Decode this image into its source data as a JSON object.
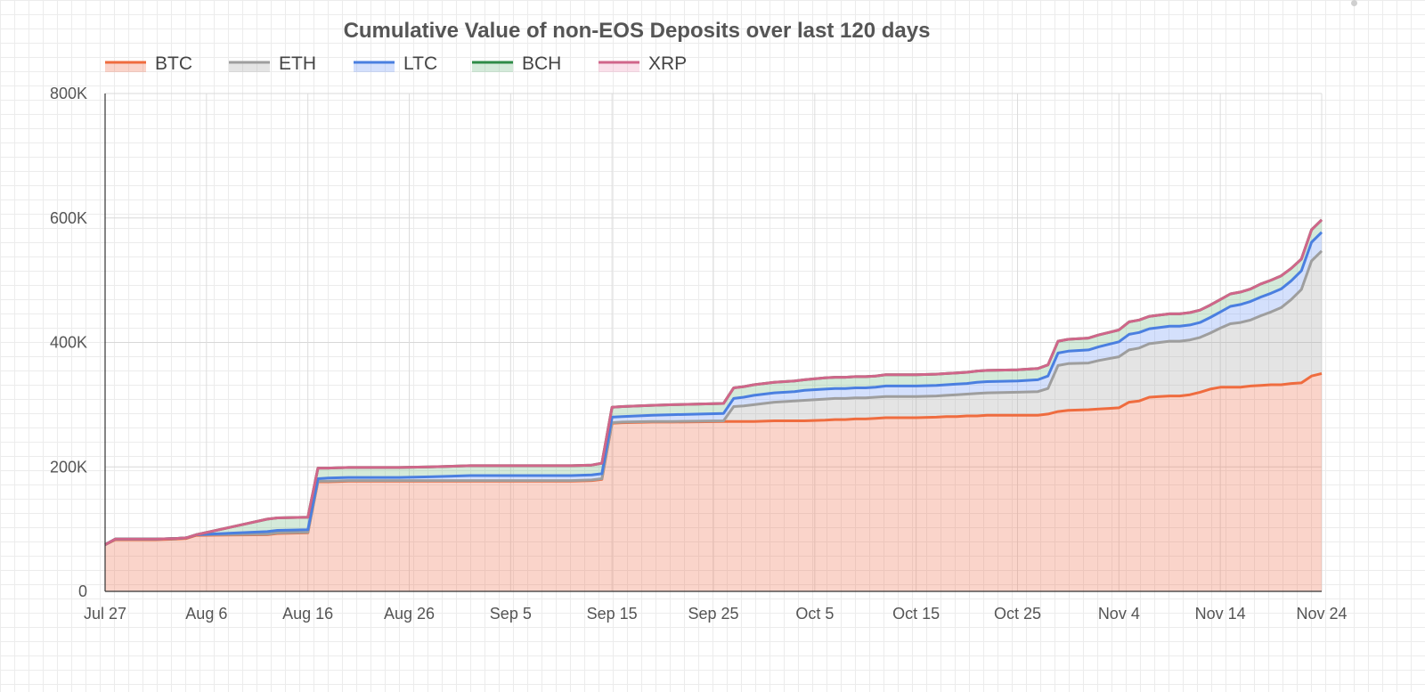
{
  "chart_data": {
    "type": "area",
    "stacked": true,
    "title": "Cumulative Value of non-EOS Deposits over last 120 days",
    "xlabel": "",
    "ylabel": "",
    "ylim": [
      0,
      800000
    ],
    "y_ticks": [
      {
        "value": 0,
        "label": "0"
      },
      {
        "value": 200000,
        "label": "200K"
      },
      {
        "value": 400000,
        "label": "400K"
      },
      {
        "value": 600000,
        "label": "600K"
      },
      {
        "value": 800000,
        "label": "800K"
      }
    ],
    "x_ticks": [
      {
        "day": 0,
        "label": "Jul 27"
      },
      {
        "day": 10,
        "label": "Aug 6"
      },
      {
        "day": 20,
        "label": "Aug 16"
      },
      {
        "day": 30,
        "label": "Aug 26"
      },
      {
        "day": 40,
        "label": "Sep 5"
      },
      {
        "day": 50,
        "label": "Sep 15"
      },
      {
        "day": 60,
        "label": "Sep 25"
      },
      {
        "day": 70,
        "label": "Oct 5"
      },
      {
        "day": 80,
        "label": "Oct 15"
      },
      {
        "day": 90,
        "label": "Oct 25"
      },
      {
        "day": 100,
        "label": "Nov 4"
      },
      {
        "day": 110,
        "label": "Nov 14"
      },
      {
        "day": 120,
        "label": "Nov 24"
      }
    ],
    "grid": true,
    "legend_position": "top-left",
    "x_day": [
      0,
      1,
      5,
      7,
      8,
      9,
      16,
      17,
      20,
      21,
      22,
      24,
      25,
      29,
      32,
      36,
      38,
      39,
      43,
      46,
      48,
      49,
      50,
      51,
      54,
      56,
      61,
      62,
      63,
      64,
      66,
      68,
      69,
      71,
      72,
      73,
      74,
      75,
      76,
      77,
      78,
      80,
      82,
      83,
      84,
      85,
      86,
      87,
      90,
      92,
      93,
      94,
      95,
      97,
      98,
      99,
      100,
      101,
      102,
      103,
      104,
      105,
      106,
      107,
      108,
      109,
      110,
      111,
      112,
      113,
      114,
      115,
      116,
      117,
      118,
      119,
      120
    ],
    "series": [
      {
        "name": "BTC",
        "color": "#ef6c3f",
        "fill": "rgba(240,120,90,0.32)",
        "values": [
          75000,
          83000,
          83000,
          84000,
          85000,
          90000,
          91000,
          93000,
          94000,
          176000,
          176000,
          177000,
          177000,
          177000,
          177000,
          177000,
          177000,
          177000,
          177000,
          177000,
          178000,
          180000,
          270000,
          271000,
          272000,
          272000,
          273000,
          273000,
          273000,
          273000,
          274000,
          274000,
          274000,
          275000,
          276000,
          276000,
          277000,
          277000,
          278000,
          279000,
          279000,
          279000,
          280000,
          281000,
          281000,
          282000,
          282000,
          283000,
          283000,
          283000,
          285000,
          289000,
          291000,
          292000,
          293000,
          294000,
          295000,
          304000,
          306000,
          312000,
          313000,
          314000,
          314000,
          316000,
          320000,
          325000,
          328000,
          328000,
          328000,
          330000,
          331000,
          332000,
          332000,
          334000,
          335000,
          346000,
          350000
        ]
      },
      {
        "name": "ETH",
        "color": "#9e9e9e",
        "fill": "rgba(170,170,170,0.32)",
        "values": [
          0,
          1000,
          1000,
          1000,
          1000,
          1000,
          1000,
          1000,
          1000,
          1000,
          1000,
          1000,
          1000,
          1000,
          1000,
          1000,
          1000,
          1000,
          1000,
          1000,
          1000,
          1000,
          1000,
          1000,
          1000,
          1000,
          1000,
          24000,
          25000,
          27000,
          30000,
          32000,
          33000,
          34000,
          34000,
          34000,
          34000,
          34000,
          34000,
          34000,
          34000,
          34000,
          34000,
          34000,
          35000,
          35000,
          36000,
          36000,
          37000,
          38000,
          41000,
          74000,
          75000,
          75000,
          78000,
          80000,
          82000,
          84000,
          85000,
          86000,
          87000,
          88000,
          88000,
          88000,
          88000,
          90000,
          95000,
          102000,
          104000,
          106000,
          112000,
          117000,
          124000,
          135000,
          150000,
          185000,
          197000
        ]
      },
      {
        "name": "LTC",
        "color": "#4a7fe0",
        "fill": "rgba(120,160,245,0.32)",
        "values": [
          0,
          0,
          0,
          0,
          0,
          0,
          4000,
          4000,
          4000,
          4000,
          5000,
          5000,
          5000,
          5000,
          6000,
          8000,
          8000,
          8000,
          8000,
          8000,
          8000,
          8000,
          9000,
          9000,
          10000,
          11000,
          12000,
          13000,
          14000,
          15000,
          15000,
          15000,
          16000,
          16000,
          16000,
          16000,
          16000,
          16000,
          16000,
          17000,
          17000,
          17000,
          17000,
          17000,
          17000,
          17000,
          18000,
          18000,
          18000,
          19000,
          20000,
          20000,
          20000,
          21000,
          22000,
          23000,
          24000,
          25000,
          25000,
          24000,
          24000,
          24000,
          24000,
          24000,
          24000,
          25000,
          26000,
          28000,
          29000,
          30000,
          30000,
          30000,
          30000,
          30000,
          30000,
          30000,
          30000
        ]
      },
      {
        "name": "BCH",
        "color": "#2e8b47",
        "fill": "rgba(120,190,140,0.32)",
        "values": [
          0,
          0,
          0,
          0,
          0,
          0,
          20000,
          20000,
          20000,
          17000,
          16000,
          16000,
          16000,
          16000,
          16000,
          16000,
          16000,
          16000,
          16000,
          16000,
          16000,
          17000,
          16000,
          16000,
          16000,
          16000,
          16000,
          17000,
          17000,
          17000,
          17000,
          17000,
          17000,
          18000,
          18000,
          18000,
          18000,
          18000,
          18000,
          18000,
          18000,
          18000,
          18000,
          18000,
          18000,
          18000,
          18000,
          18000,
          18000,
          18000,
          18000,
          19000,
          19000,
          19000,
          19000,
          19000,
          19000,
          20000,
          20000,
          20000,
          20000,
          20000,
          20000,
          20000,
          20000,
          20000,
          20000,
          20000,
          20000,
          20000,
          21000,
          21000,
          21000,
          20000,
          19000,
          20000,
          20000
        ]
      },
      {
        "name": "XRP",
        "color": "#d0668a",
        "fill": "rgba(240,160,190,0.32)",
        "values": [
          0,
          0,
          0,
          0,
          0,
          0,
          0,
          0,
          0,
          0,
          0,
          0,
          0,
          0,
          0,
          0,
          0,
          0,
          0,
          0,
          0,
          0,
          0,
          0,
          0,
          0,
          0,
          0,
          0,
          0,
          0,
          0,
          0,
          0,
          0,
          0,
          0,
          0,
          0,
          0,
          0,
          0,
          0,
          0,
          0,
          0,
          0,
          0,
          0,
          0,
          0,
          0,
          0,
          0,
          0,
          0,
          0,
          0,
          0,
          0,
          0,
          0,
          0,
          0,
          0,
          0,
          0,
          0,
          0,
          0,
          0,
          0,
          0,
          0,
          0,
          0,
          0
        ]
      }
    ]
  }
}
